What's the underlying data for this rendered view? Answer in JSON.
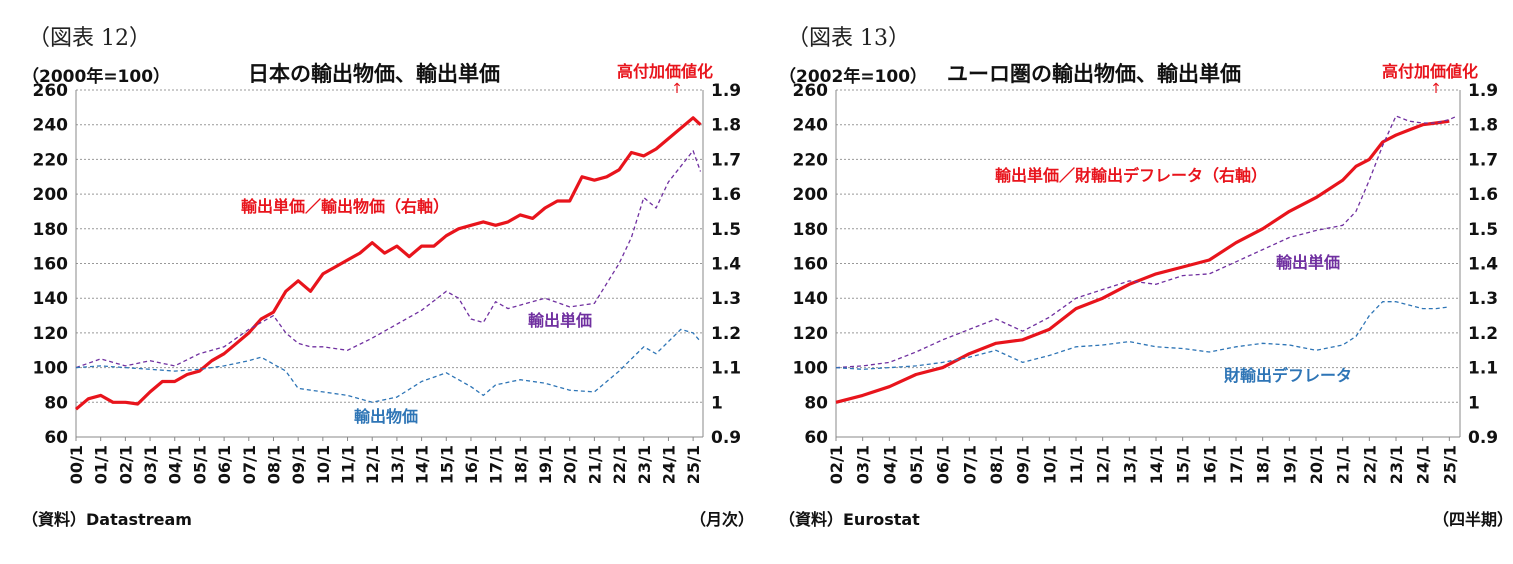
{
  "left": {
    "fig_label": "（図表 12）",
    "unit": "（2000年=100）",
    "title": "日本の輸出物価、輸出単価",
    "annotation": "高付加価値化",
    "arrow": "↑",
    "source": "（資料）Datastream",
    "period": "（月次）"
  },
  "right": {
    "fig_label": "（図表 13）",
    "unit": "（2002年=100）",
    "title": "ユーロ圏の輸出物価、輸出単価",
    "annotation": "高付加価値化",
    "arrow": "↑",
    "source": "（資料）Eurostat",
    "period": "（四半期）"
  },
  "colors": {
    "ratio": "#e8141c",
    "unit_value": "#7030a0",
    "price": "#2e75b6",
    "grid": "#999999"
  },
  "chart_data": [
    {
      "type": "line",
      "title": "日本の輸出物価、輸出単価",
      "ylabel": "（2000年=100）",
      "ylim": [
        60,
        260
      ],
      "yticks": [
        "60",
        "80",
        "100",
        "120",
        "140",
        "160",
        "180",
        "200",
        "220",
        "240",
        "260"
      ],
      "y2lim": [
        0.9,
        1.9
      ],
      "y2ticks": [
        "0.9",
        "1",
        "1.1",
        "1.2",
        "1.3",
        "1.4",
        "1.5",
        "1.6",
        "1.7",
        "1.8",
        "1.9"
      ],
      "categories": [
        "00/1",
        "01/1",
        "02/1",
        "03/1",
        "04/1",
        "05/1",
        "06/1",
        "07/1",
        "08/1",
        "09/1",
        "10/1",
        "11/1",
        "12/1",
        "13/1",
        "14/1",
        "15/1",
        "16/1",
        "17/1",
        "18/1",
        "19/1",
        "20/1",
        "21/1",
        "22/1",
        "23/1",
        "24/1",
        "25/1"
      ],
      "series": [
        {
          "name": "輸出単価／輸出物価（右軸）",
          "axis": "right",
          "style": "solid",
          "x": [
            2000,
            2000.5,
            2001,
            2001.5,
            2002,
            2002.5,
            2003,
            2003.5,
            2004,
            2004.5,
            2005,
            2005.5,
            2006,
            2006.5,
            2007,
            2007.5,
            2008,
            2008.5,
            2009,
            2009.5,
            2010,
            2010.5,
            2011,
            2011.5,
            2012,
            2012.5,
            2013,
            2013.5,
            2014,
            2014.5,
            2015,
            2015.5,
            2016,
            2016.5,
            2017,
            2017.5,
            2018,
            2018.5,
            2019,
            2019.5,
            2020,
            2020.5,
            2021,
            2021.5,
            2022,
            2022.5,
            2023,
            2023.5,
            2024,
            2024.5,
            2025,
            2025.3
          ],
          "values": [
            0.98,
            1.01,
            1.02,
            1.0,
            1.0,
            0.995,
            1.03,
            1.06,
            1.06,
            1.08,
            1.09,
            1.12,
            1.14,
            1.17,
            1.2,
            1.24,
            1.26,
            1.32,
            1.35,
            1.32,
            1.37,
            1.39,
            1.41,
            1.43,
            1.46,
            1.43,
            1.45,
            1.42,
            1.45,
            1.45,
            1.48,
            1.5,
            1.51,
            1.52,
            1.51,
            1.52,
            1.54,
            1.53,
            1.56,
            1.58,
            1.58,
            1.65,
            1.64,
            1.65,
            1.67,
            1.72,
            1.71,
            1.73,
            1.76,
            1.79,
            1.82,
            1.8
          ]
        },
        {
          "name": "輸出単価",
          "axis": "left",
          "style": "dashed",
          "x": [
            2000,
            2001,
            2002,
            2003,
            2004,
            2005,
            2006,
            2007,
            2007.5,
            2008,
            2008.5,
            2009,
            2009.5,
            2010,
            2011,
            2012,
            2013,
            2014,
            2015,
            2015.5,
            2016,
            2016.5,
            2017,
            2017.5,
            2018,
            2019,
            2020,
            2021,
            2022,
            2022.5,
            2023,
            2023.5,
            2024,
            2024.5,
            2025,
            2025.3
          ],
          "values": [
            100,
            105,
            101,
            104,
            101,
            108,
            112,
            122,
            126,
            130,
            120,
            114,
            112,
            112,
            110,
            117,
            125,
            133,
            144,
            140,
            128,
            126,
            138,
            134,
            136,
            140,
            135,
            137,
            160,
            175,
            198,
            192,
            207,
            216,
            225,
            213
          ]
        },
        {
          "name": "輸出物価",
          "axis": "left",
          "style": "dashed",
          "x": [
            2000,
            2001,
            2002,
            2003,
            2004,
            2005,
            2006,
            2007,
            2007.5,
            2008,
            2008.5,
            2009,
            2010,
            2011,
            2012,
            2013,
            2014,
            2015,
            2016,
            2016.5,
            2017,
            2018,
            2019,
            2020,
            2021,
            2022,
            2022.5,
            2023,
            2023.5,
            2024,
            2024.5,
            2025,
            2025.3
          ],
          "values": [
            100,
            101,
            100,
            99,
            98,
            99,
            101,
            104,
            106,
            102,
            98,
            88,
            86,
            84,
            80,
            83,
            92,
            97,
            89,
            84,
            90,
            93,
            91,
            87,
            86,
            98,
            105,
            112,
            108,
            115,
            122,
            120,
            115
          ]
        }
      ]
    },
    {
      "type": "line",
      "title": "ユーロ圏の輸出物価、輸出単価",
      "ylabel": "（2002年=100）",
      "ylim": [
        60,
        260
      ],
      "yticks": [
        "60",
        "80",
        "100",
        "120",
        "140",
        "160",
        "180",
        "200",
        "220",
        "240",
        "260"
      ],
      "y2lim": [
        0.9,
        1.9
      ],
      "y2ticks": [
        "0.9",
        "1",
        "1.1",
        "1.2",
        "1.3",
        "1.4",
        "1.5",
        "1.6",
        "1.7",
        "1.8",
        "1.9"
      ],
      "categories": [
        "02/1",
        "03/1",
        "04/1",
        "05/1",
        "06/1",
        "07/1",
        "08/1",
        "09/1",
        "10/1",
        "11/1",
        "12/1",
        "13/1",
        "14/1",
        "15/1",
        "16/1",
        "17/1",
        "18/1",
        "19/1",
        "20/1",
        "21/1",
        "22/1",
        "23/1",
        "24/1",
        "25/1"
      ],
      "series": [
        {
          "name": "輸出単価／財輸出デフレータ（右軸）",
          "axis": "right",
          "style": "solid",
          "x": [
            2002,
            2003,
            2004,
            2005,
            2006,
            2007,
            2008,
            2009,
            2010,
            2011,
            2012,
            2013,
            2014,
            2015,
            2016,
            2017,
            2018,
            2019,
            2020,
            2021,
            2021.5,
            2022,
            2022.5,
            2023,
            2023.5,
            2024,
            2024.5,
            2025
          ],
          "values": [
            1.0,
            1.02,
            1.045,
            1.08,
            1.1,
            1.14,
            1.17,
            1.18,
            1.21,
            1.27,
            1.3,
            1.34,
            1.37,
            1.39,
            1.41,
            1.46,
            1.5,
            1.55,
            1.59,
            1.64,
            1.68,
            1.7,
            1.75,
            1.77,
            1.785,
            1.8,
            1.805,
            1.81
          ]
        },
        {
          "name": "輸出単価",
          "axis": "left",
          "style": "dashed",
          "x": [
            2002,
            2003,
            2004,
            2005,
            2006,
            2007,
            2008,
            2009,
            2010,
            2011,
            2012,
            2013,
            2014,
            2015,
            2016,
            2017,
            2018,
            2019,
            2020,
            2021,
            2021.5,
            2022,
            2022.5,
            2023,
            2023.5,
            2024,
            2024.5,
            2025,
            2025.3
          ],
          "values": [
            100,
            101,
            103,
            109,
            116,
            122,
            128,
            121,
            129,
            140,
            145,
            150,
            148,
            153,
            154,
            161,
            168,
            175,
            179,
            182,
            190,
            208,
            228,
            245,
            242,
            241,
            241,
            243,
            245
          ]
        },
        {
          "name": "財輸出デフレータ",
          "axis": "left",
          "style": "dashed",
          "x": [
            2002,
            2003,
            2004,
            2005,
            2006,
            2007,
            2008,
            2009,
            2010,
            2011,
            2012,
            2013,
            2014,
            2015,
            2016,
            2017,
            2018,
            2019,
            2020,
            2021,
            2021.5,
            2022,
            2022.5,
            2023,
            2023.5,
            2024,
            2024.5,
            2025
          ],
          "values": [
            100,
            99,
            100,
            101,
            103,
            106,
            110,
            103,
            107,
            112,
            113,
            115,
            112,
            111,
            109,
            112,
            114,
            113,
            110,
            113,
            118,
            130,
            138,
            138,
            136,
            134,
            134,
            135
          ]
        }
      ]
    }
  ]
}
